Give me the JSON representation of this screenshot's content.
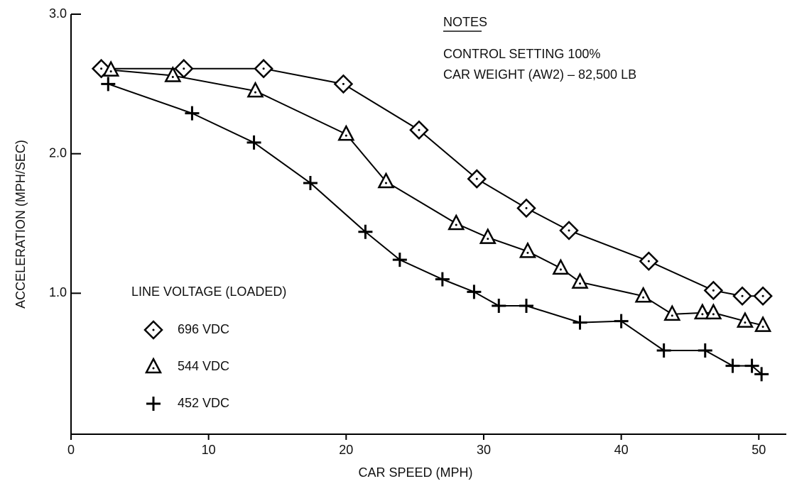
{
  "chart_data": {
    "type": "line",
    "notes_title": "NOTES",
    "notes": [
      "CONTROL SETTING 100%",
      "CAR WEIGHT (AW2) – 82,500 LB"
    ],
    "xlabel": "CAR SPEED (MPH)",
    "ylabel": "ACCELERATION (MPH/SEC)",
    "legend_title": "LINE VOLTAGE (LOADED)",
    "xlim": [
      0,
      52
    ],
    "ylim": [
      0,
      3
    ],
    "xticks": [
      0,
      10,
      20,
      30,
      40,
      50
    ],
    "yticks": [
      {
        "value": 1,
        "label": "1.0"
      },
      {
        "value": 2,
        "label": "2.0"
      },
      {
        "value": 3,
        "label": "3.0"
      }
    ],
    "color": "#000000",
    "series": [
      {
        "name": "696 VDC",
        "marker": "diamond",
        "x": [
          2.2,
          8.2,
          14.0,
          19.8,
          25.3,
          29.5,
          33.1,
          36.2,
          42.0,
          46.7,
          48.8,
          50.3
        ],
        "values": [
          2.61,
          2.61,
          2.61,
          2.5,
          2.17,
          1.82,
          1.61,
          1.45,
          1.23,
          1.02,
          0.98,
          0.98
        ]
      },
      {
        "name": "544 VDC",
        "marker": "triangle",
        "x": [
          2.9,
          7.4,
          13.4,
          20.0,
          22.9,
          28.0,
          30.3,
          33.2,
          35.6,
          37.0,
          41.6,
          43.7,
          45.9,
          46.7,
          49.0,
          50.3
        ],
        "values": [
          2.6,
          2.56,
          2.45,
          2.14,
          1.8,
          1.5,
          1.4,
          1.3,
          1.18,
          1.08,
          0.98,
          0.85,
          0.86,
          0.86,
          0.8,
          0.77
        ]
      },
      {
        "name": "452 VDC",
        "marker": "cross",
        "x": [
          2.7,
          8.8,
          13.3,
          17.4,
          21.4,
          23.9,
          27.0,
          29.3,
          31.1,
          33.1,
          37.0,
          40.0,
          43.1,
          46.1,
          48.1,
          49.5,
          50.2
        ],
        "values": [
          2.5,
          2.29,
          2.08,
          1.79,
          1.44,
          1.24,
          1.1,
          1.01,
          0.91,
          0.91,
          0.79,
          0.8,
          0.59,
          0.59,
          0.48,
          0.48,
          0.42
        ]
      }
    ]
  }
}
